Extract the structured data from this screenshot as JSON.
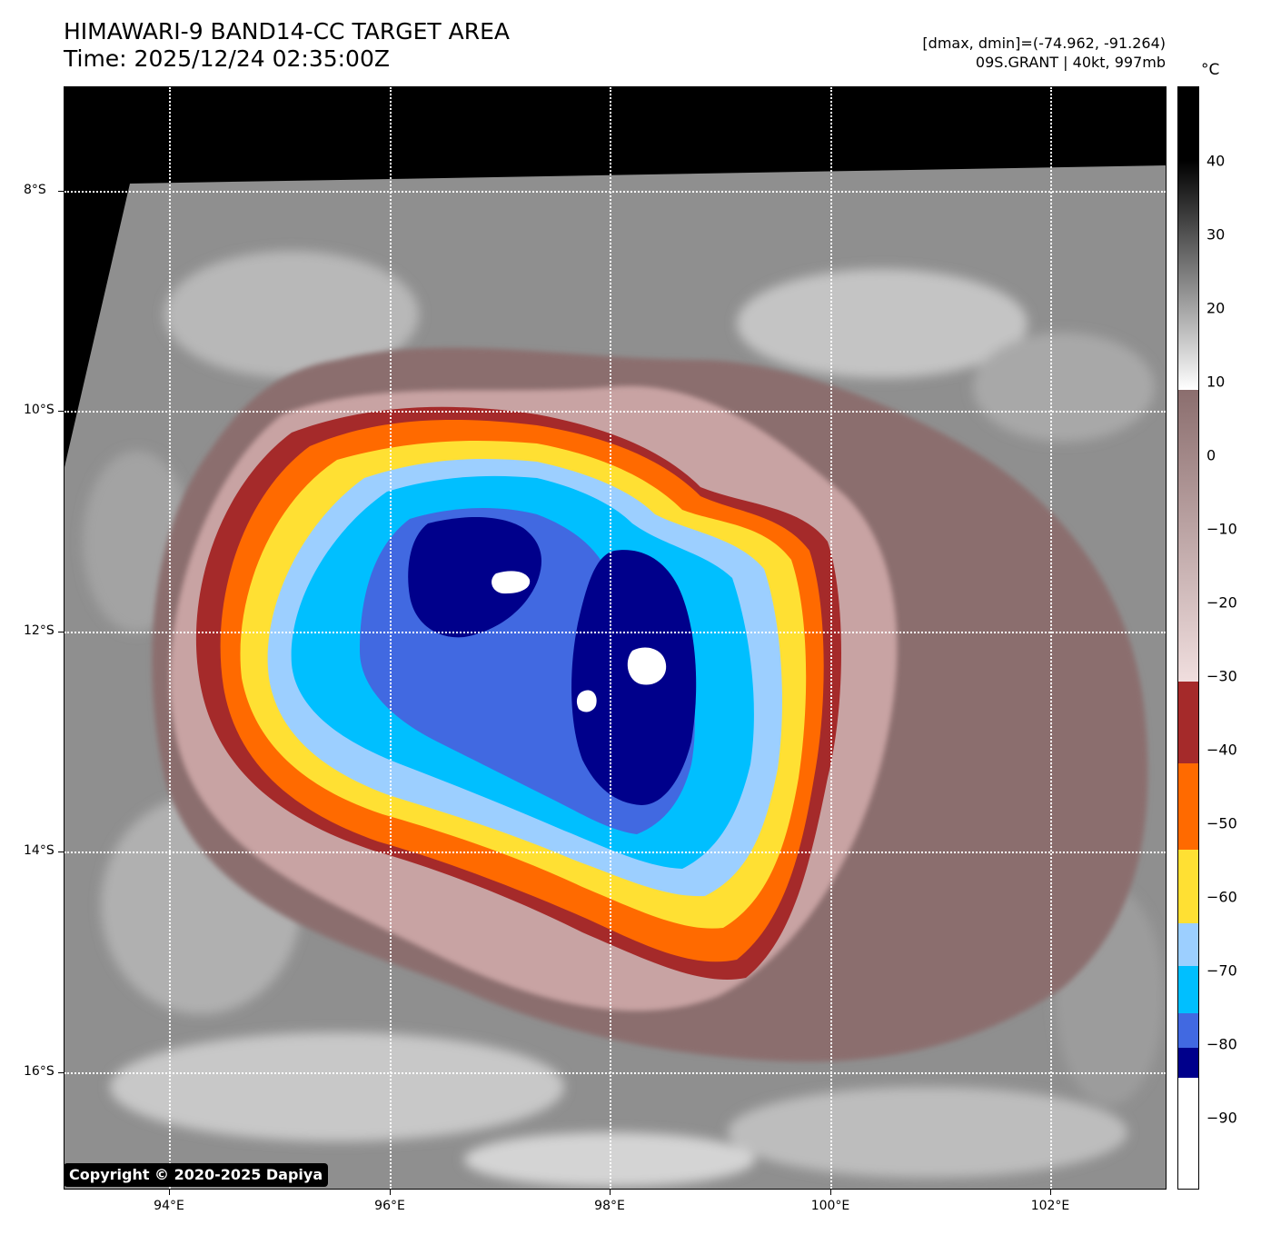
{
  "header": {
    "title_line1": "HIMAWARI-9 BAND14-CC TARGET AREA",
    "title_line2": "Time: 2025/12/24 02:35:00Z",
    "info_line1": "[dmax, dmin]=(-74.962, -91.264)",
    "info_line2": "09S.GRANT | 40kt, 997mb"
  },
  "colorbar": {
    "unit": "°C",
    "labels": [
      "40",
      "30",
      "20",
      "10",
      "0",
      "−10",
      "−20",
      "−30",
      "−40",
      "−50",
      "−60",
      "−70",
      "−80",
      "−90"
    ]
  },
  "axes": {
    "lat_labels": [
      "8°S",
      "10°S",
      "12°S",
      "14°S",
      "16°S"
    ],
    "lon_labels": [
      "94°E",
      "96°E",
      "98°E",
      "100°E",
      "102°E"
    ]
  },
  "storm": {
    "name": "09S.GRANT",
    "intensity": "40kt",
    "pressure": "997mb",
    "dmax": -74.962,
    "dmin": -91.264
  },
  "colors": {
    "cold_white": "#ffffff",
    "navy": "#00008b",
    "royal_blue": "#4169e1",
    "sky_blue": "#00bfff",
    "light_blue": "#9ccfff",
    "yellow": "#ffe033",
    "orange": "#ff6a00",
    "dark_red": "#a52a2a",
    "rose": "#c8a3a3",
    "mauve": "#8b6e6e"
  },
  "copyright": "Copyright © 2020-2025 Dapiya"
}
